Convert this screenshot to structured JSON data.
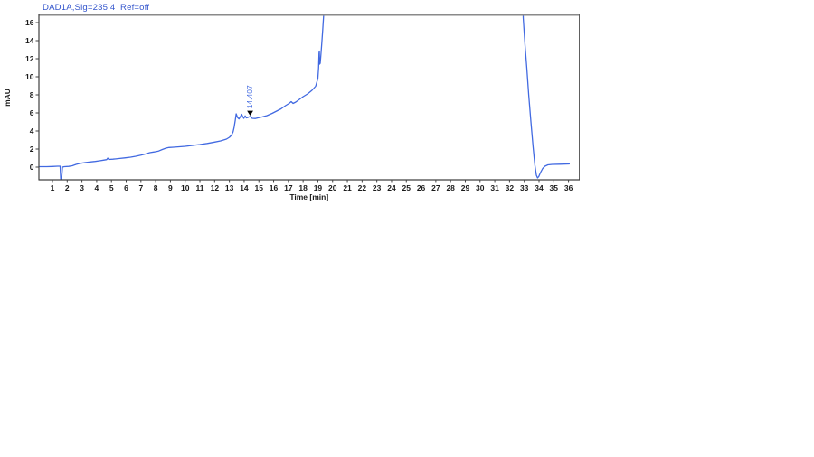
{
  "chart_data": {
    "type": "line",
    "title": "DAD1A,Sig=235,4  Ref=off",
    "xlabel": "Time [min]",
    "ylabel": "mAU",
    "xlim": [
      0.08,
      36.73
    ],
    "ylim": [
      -1.4,
      16.8
    ],
    "x_ticks": [
      1,
      2,
      3,
      4,
      5,
      6,
      7,
      8,
      9,
      10,
      11,
      12,
      13,
      14,
      15,
      16,
      17,
      18,
      19,
      20,
      21,
      22,
      23,
      24,
      25,
      26,
      27,
      28,
      29,
      30,
      31,
      32,
      33,
      34,
      35,
      36
    ],
    "y_ticks": [
      0,
      2,
      4,
      6,
      8,
      10,
      12,
      14,
      16
    ],
    "grid": false,
    "legend_position": "none",
    "line_color": "#4169E1",
    "title_color": "#3355CC",
    "frame_color": "#8a8a8a",
    "axis_color": "#404040",
    "text_color": "#1a1a1a",
    "peak_label_color": "#4169E1",
    "marker_color": "#000000",
    "peaks": [
      {
        "retention_time": "14.407",
        "x": 14.407,
        "y": 5.62,
        "marker": "down-triangle"
      }
    ],
    "series": [
      {
        "name": "DAD1A,Sig=235,4 Ref=off",
        "points": [
          [
            0.08,
            0.05
          ],
          [
            0.6,
            0.05
          ],
          [
            1.0,
            0.07
          ],
          [
            1.35,
            0.1
          ],
          [
            1.52,
            0.1
          ],
          [
            1.56,
            -1.3
          ],
          [
            1.62,
            -1.3
          ],
          [
            1.68,
            0.0
          ],
          [
            1.8,
            0.05
          ],
          [
            2.1,
            0.08
          ],
          [
            2.35,
            0.15
          ],
          [
            2.6,
            0.3
          ],
          [
            2.9,
            0.42
          ],
          [
            3.2,
            0.5
          ],
          [
            3.55,
            0.57
          ],
          [
            3.9,
            0.63
          ],
          [
            4.2,
            0.7
          ],
          [
            4.5,
            0.78
          ],
          [
            4.68,
            0.83
          ],
          [
            4.75,
            1.0
          ],
          [
            4.82,
            0.85
          ],
          [
            5.1,
            0.88
          ],
          [
            5.5,
            0.95
          ],
          [
            5.9,
            1.02
          ],
          [
            6.3,
            1.1
          ],
          [
            6.65,
            1.2
          ],
          [
            7.0,
            1.32
          ],
          [
            7.3,
            1.45
          ],
          [
            7.6,
            1.6
          ],
          [
            7.9,
            1.68
          ],
          [
            8.2,
            1.78
          ],
          [
            8.45,
            1.95
          ],
          [
            8.7,
            2.1
          ],
          [
            8.9,
            2.17
          ],
          [
            9.2,
            2.2
          ],
          [
            9.6,
            2.25
          ],
          [
            10.0,
            2.3
          ],
          [
            10.5,
            2.4
          ],
          [
            11.0,
            2.5
          ],
          [
            11.5,
            2.62
          ],
          [
            12.0,
            2.77
          ],
          [
            12.4,
            2.9
          ],
          [
            12.8,
            3.1
          ],
          [
            13.0,
            3.3
          ],
          [
            13.15,
            3.55
          ],
          [
            13.25,
            3.9
          ],
          [
            13.32,
            4.4
          ],
          [
            13.4,
            5.2
          ],
          [
            13.46,
            5.9
          ],
          [
            13.55,
            5.5
          ],
          [
            13.65,
            5.33
          ],
          [
            13.75,
            5.6
          ],
          [
            13.83,
            5.85
          ],
          [
            13.9,
            5.6
          ],
          [
            13.98,
            5.4
          ],
          [
            14.07,
            5.67
          ],
          [
            14.15,
            5.45
          ],
          [
            14.25,
            5.5
          ],
          [
            14.41,
            5.62
          ],
          [
            14.55,
            5.4
          ],
          [
            14.75,
            5.38
          ],
          [
            14.93,
            5.45
          ],
          [
            15.2,
            5.55
          ],
          [
            15.55,
            5.7
          ],
          [
            15.9,
            5.95
          ],
          [
            16.2,
            6.2
          ],
          [
            16.5,
            6.45
          ],
          [
            16.8,
            6.8
          ],
          [
            17.05,
            7.05
          ],
          [
            17.19,
            7.25
          ],
          [
            17.32,
            7.05
          ],
          [
            17.5,
            7.2
          ],
          [
            17.75,
            7.5
          ],
          [
            18.0,
            7.8
          ],
          [
            18.3,
            8.1
          ],
          [
            18.6,
            8.5
          ],
          [
            18.85,
            8.95
          ],
          [
            19.0,
            9.8
          ],
          [
            19.05,
            11.0
          ],
          [
            19.08,
            12.6
          ],
          [
            19.1,
            12.85
          ],
          [
            19.12,
            11.4
          ],
          [
            19.16,
            11.5
          ],
          [
            19.2,
            12.3
          ],
          [
            19.27,
            13.8
          ],
          [
            19.33,
            15.2
          ],
          [
            19.42,
            17.5
          ],
          [
            19.6,
            40
          ],
          [
            32.6,
            40
          ],
          [
            32.93,
            16.5
          ],
          [
            33.05,
            13.5
          ],
          [
            33.17,
            11.0
          ],
          [
            33.3,
            8.0
          ],
          [
            33.45,
            5.0
          ],
          [
            33.6,
            2.2
          ],
          [
            33.72,
            0.2
          ],
          [
            33.82,
            -0.9
          ],
          [
            33.9,
            -1.2
          ],
          [
            33.98,
            -1.05
          ],
          [
            34.1,
            -0.6
          ],
          [
            34.25,
            -0.15
          ],
          [
            34.4,
            0.1
          ],
          [
            34.6,
            0.25
          ],
          [
            34.9,
            0.3
          ],
          [
            35.4,
            0.32
          ],
          [
            36.05,
            0.35
          ]
        ]
      }
    ]
  }
}
